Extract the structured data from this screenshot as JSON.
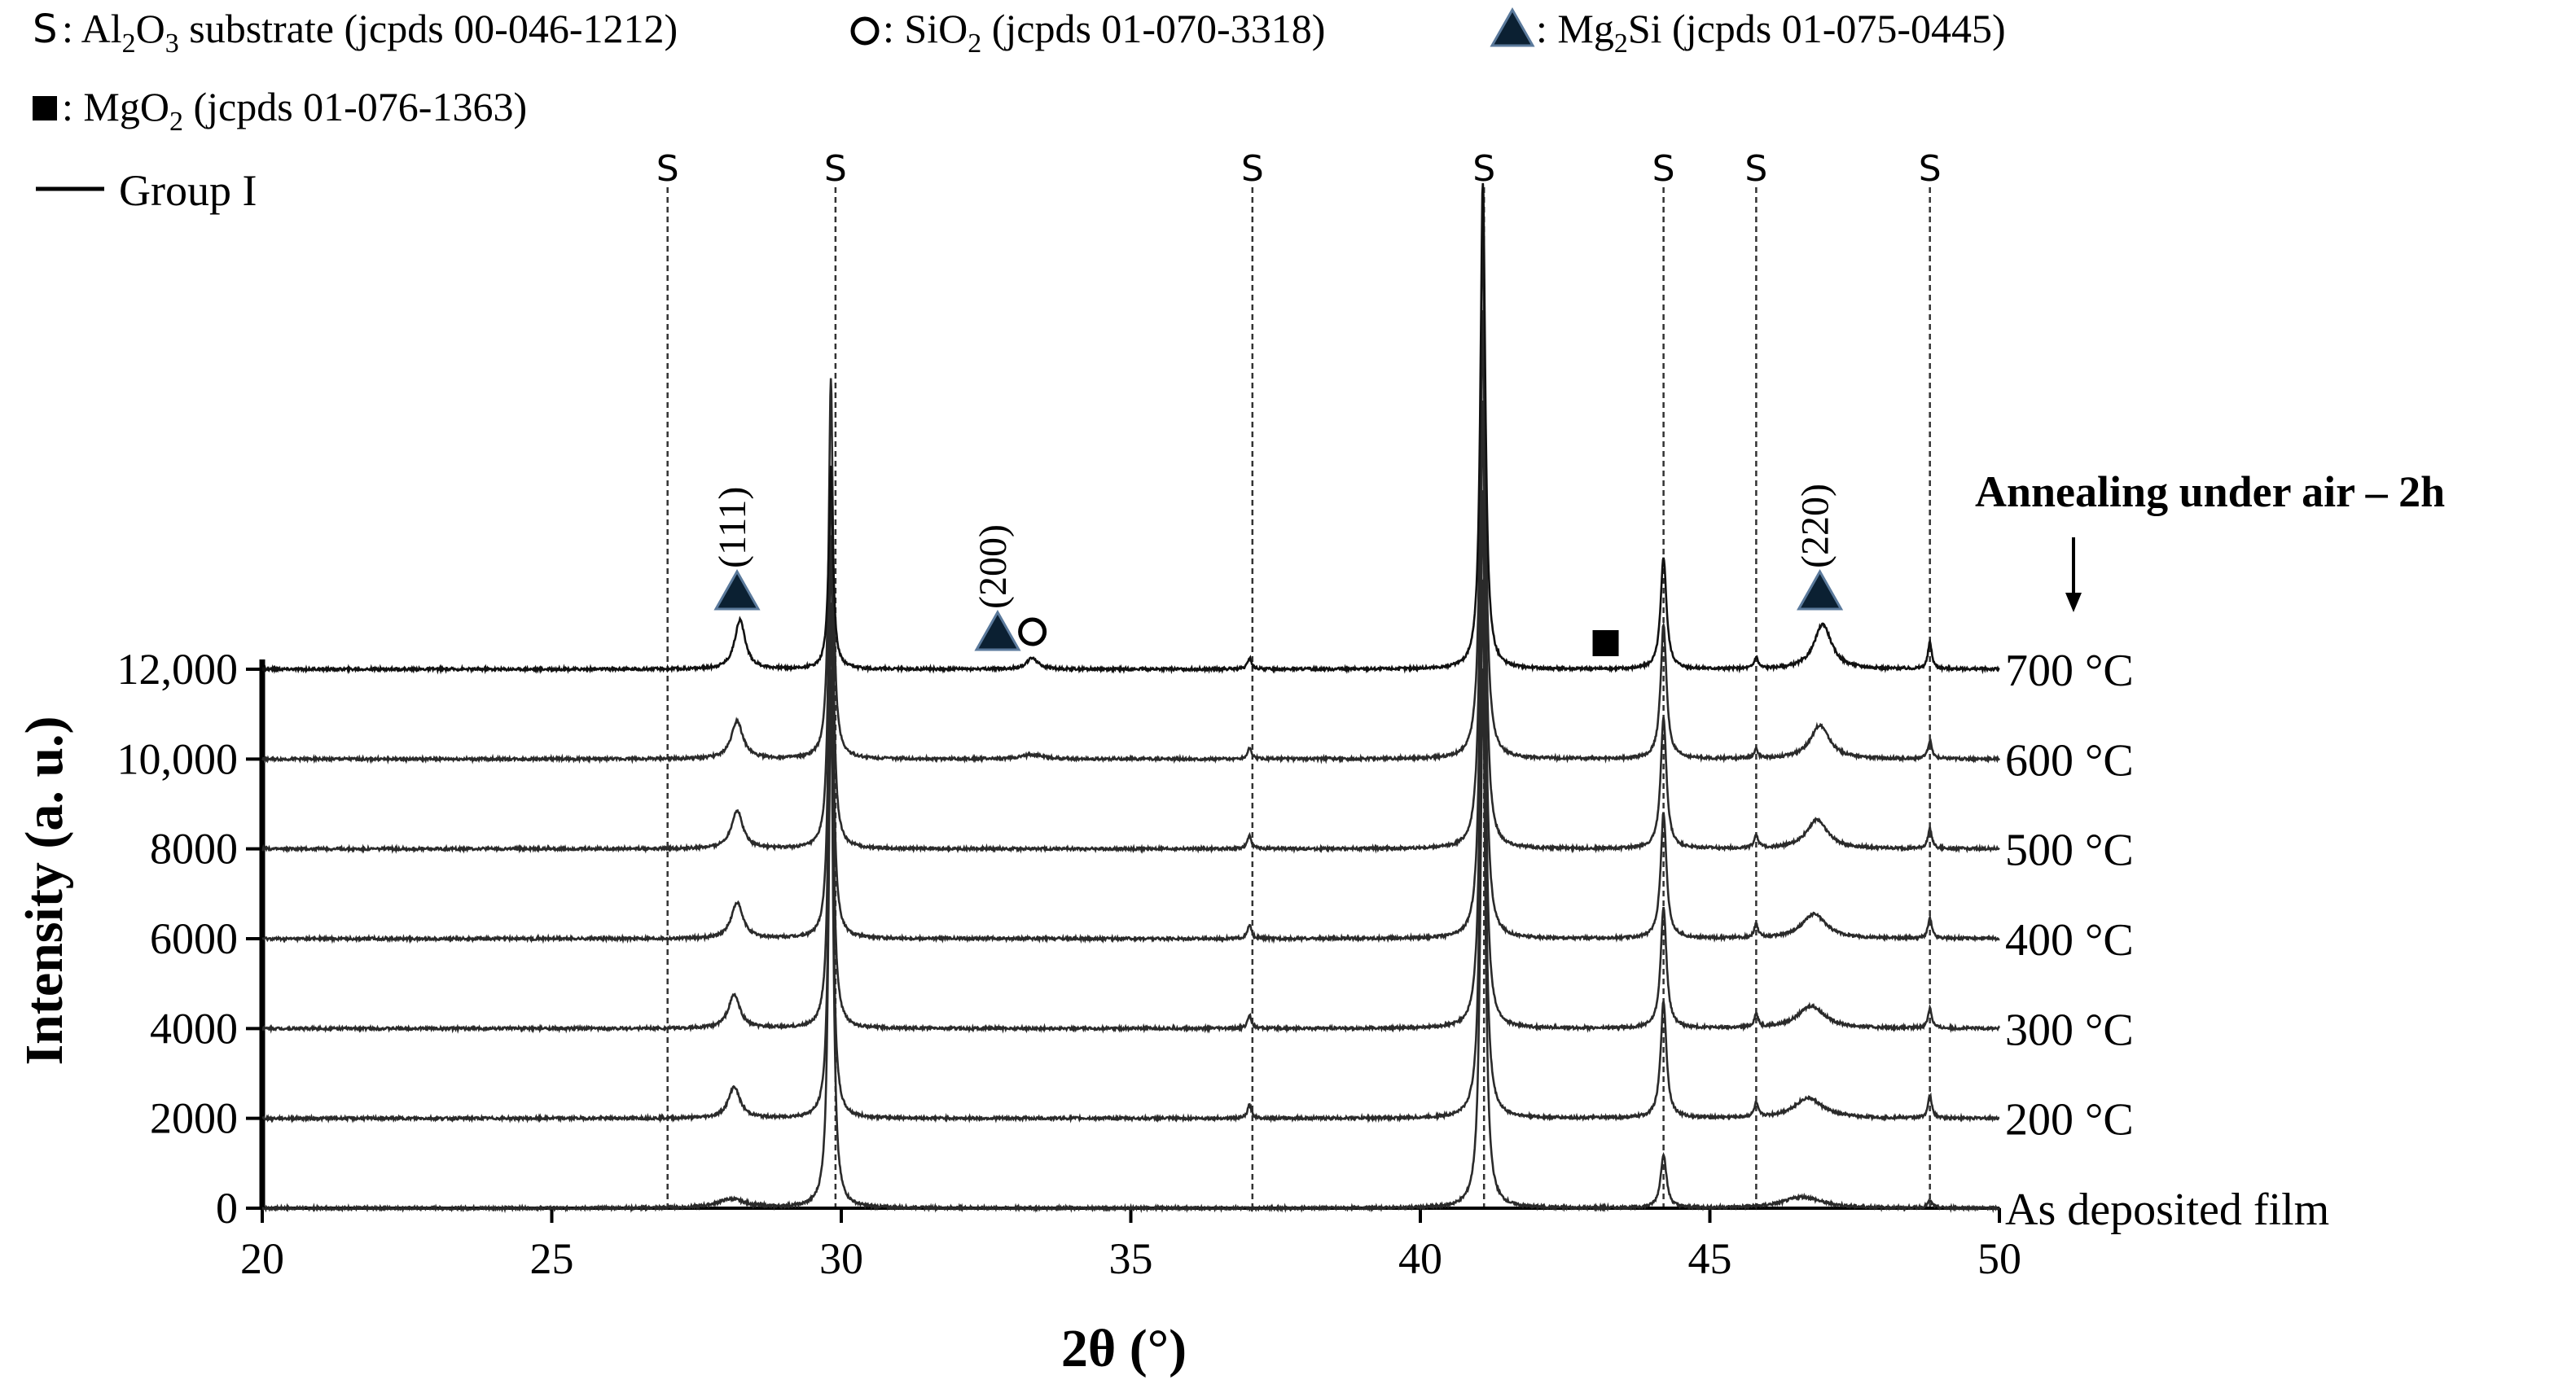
{
  "chart_data": {
    "type": "line",
    "title": "",
    "xlabel": "2θ (°)",
    "ylabel": "Intensity (a. u.)",
    "xlim": [
      20,
      50
    ],
    "ylim": [
      0,
      12000
    ],
    "x_ticks": [
      "20",
      "25",
      "30",
      "35",
      "40",
      "45",
      "50"
    ],
    "x_tick_values": [
      20,
      25,
      30,
      35,
      40,
      45,
      50
    ],
    "y_ticks": [
      "0",
      "2000",
      "4000",
      "6000",
      "8000",
      "10,000",
      "12,000"
    ],
    "y_tick_values": [
      0,
      2000,
      4000,
      6000,
      8000,
      10000,
      12000
    ],
    "annealing_note": "Annealing under air – 2h",
    "legend": {
      "substrate": {
        "symbol": "S",
        "text_a": ": Al",
        "sub1": "2",
        "text_b": "O",
        "sub2": "3",
        "text_c": " substrate (jcpds 00-046-1212)"
      },
      "sio2": {
        "text_a": ": SiO",
        "sub1": "2",
        "text_b": " (jcpds 01-070-3318)"
      },
      "mg2si": {
        "text_a": ": Mg",
        "sub1": "2",
        "text_b": "Si (jcpds 01-075-0445)"
      },
      "mgo2": {
        "text_a": ": MgO",
        "sub1": "2",
        "text_b": " (jcpds 01-076-1363)"
      },
      "group": "Group I"
    },
    "reference_lines": [
      {
        "x": 27.0,
        "label": "S"
      },
      {
        "x": 29.9,
        "label": "S"
      },
      {
        "x": 37.1,
        "label": "S"
      },
      {
        "x": 41.1,
        "label": "S"
      },
      {
        "x": 44.2,
        "label": "S"
      },
      {
        "x": 45.8,
        "label": "S"
      },
      {
        "x": 48.8,
        "label": "S"
      }
    ],
    "annotations": {
      "mg2si_111": {
        "x": 28.2,
        "label": "(111)"
      },
      "mg2si_200": {
        "x": 32.7,
        "label": "(200)"
      },
      "mg2si_220": {
        "x": 46.9,
        "label": "(220)"
      },
      "sio2_x": 33.3,
      "mgo2_x": 43.2
    },
    "series": [
      {
        "name": "As deposited film",
        "offset": 0,
        "peaks": [
          [
            28.1,
            200,
            0.3
          ],
          [
            29.82,
            12000,
            0.045
          ],
          [
            41.08,
            12000,
            0.05
          ],
          [
            44.2,
            1200,
            0.06
          ],
          [
            46.6,
            250,
            0.4
          ],
          [
            48.8,
            150,
            0.05
          ]
        ]
      },
      {
        "name": "200 °C",
        "offset": 2000,
        "peaks": [
          [
            28.15,
            700,
            0.12
          ],
          [
            29.82,
            9500,
            0.045
          ],
          [
            37.05,
            300,
            0.04
          ],
          [
            41.08,
            12000,
            0.05
          ],
          [
            44.2,
            2600,
            0.06
          ],
          [
            45.8,
            300,
            0.04
          ],
          [
            46.7,
            450,
            0.3
          ],
          [
            48.8,
            500,
            0.04
          ]
        ]
      },
      {
        "name": "300 °C",
        "offset": 4000,
        "peaks": [
          [
            28.15,
            750,
            0.12
          ],
          [
            29.82,
            9500,
            0.045
          ],
          [
            37.05,
            300,
            0.04
          ],
          [
            41.08,
            12000,
            0.05
          ],
          [
            44.2,
            2700,
            0.06
          ],
          [
            45.8,
            300,
            0.04
          ],
          [
            46.75,
            500,
            0.28
          ],
          [
            48.8,
            450,
            0.04
          ]
        ]
      },
      {
        "name": "400 °C",
        "offset": 6000,
        "peaks": [
          [
            28.2,
            800,
            0.12
          ],
          [
            29.82,
            9000,
            0.045
          ],
          [
            37.05,
            300,
            0.04
          ],
          [
            41.08,
            12000,
            0.05
          ],
          [
            44.2,
            2800,
            0.06
          ],
          [
            45.8,
            300,
            0.04
          ],
          [
            46.8,
            550,
            0.25
          ],
          [
            48.8,
            450,
            0.04
          ]
        ]
      },
      {
        "name": "500 °C",
        "offset": 8000,
        "peaks": [
          [
            28.2,
            850,
            0.12
          ],
          [
            29.82,
            8500,
            0.045
          ],
          [
            37.05,
            300,
            0.04
          ],
          [
            41.08,
            12000,
            0.05
          ],
          [
            44.2,
            2900,
            0.06
          ],
          [
            45.8,
            300,
            0.04
          ],
          [
            46.85,
            650,
            0.22
          ],
          [
            48.8,
            450,
            0.04
          ]
        ]
      },
      {
        "name": "600 °C",
        "offset": 10000,
        "peaks": [
          [
            28.2,
            850,
            0.12
          ],
          [
            29.82,
            8500,
            0.045
          ],
          [
            33.3,
            100,
            0.2
          ],
          [
            37.05,
            250,
            0.04
          ],
          [
            41.08,
            12000,
            0.05
          ],
          [
            44.2,
            3000,
            0.06
          ],
          [
            45.8,
            200,
            0.04
          ],
          [
            46.9,
            750,
            0.2
          ],
          [
            48.8,
            400,
            0.04
          ]
        ]
      },
      {
        "name": "700 °C",
        "offset": 12000,
        "peaks": [
          [
            28.25,
            1100,
            0.11
          ],
          [
            29.82,
            4500,
            0.045
          ],
          [
            33.3,
            250,
            0.12
          ],
          [
            37.05,
            250,
            0.04
          ],
          [
            41.08,
            11000,
            0.05
          ],
          [
            44.2,
            2500,
            0.06
          ],
          [
            45.8,
            250,
            0.04
          ],
          [
            46.95,
            1000,
            0.18
          ],
          [
            48.8,
            600,
            0.04
          ]
        ]
      }
    ]
  }
}
